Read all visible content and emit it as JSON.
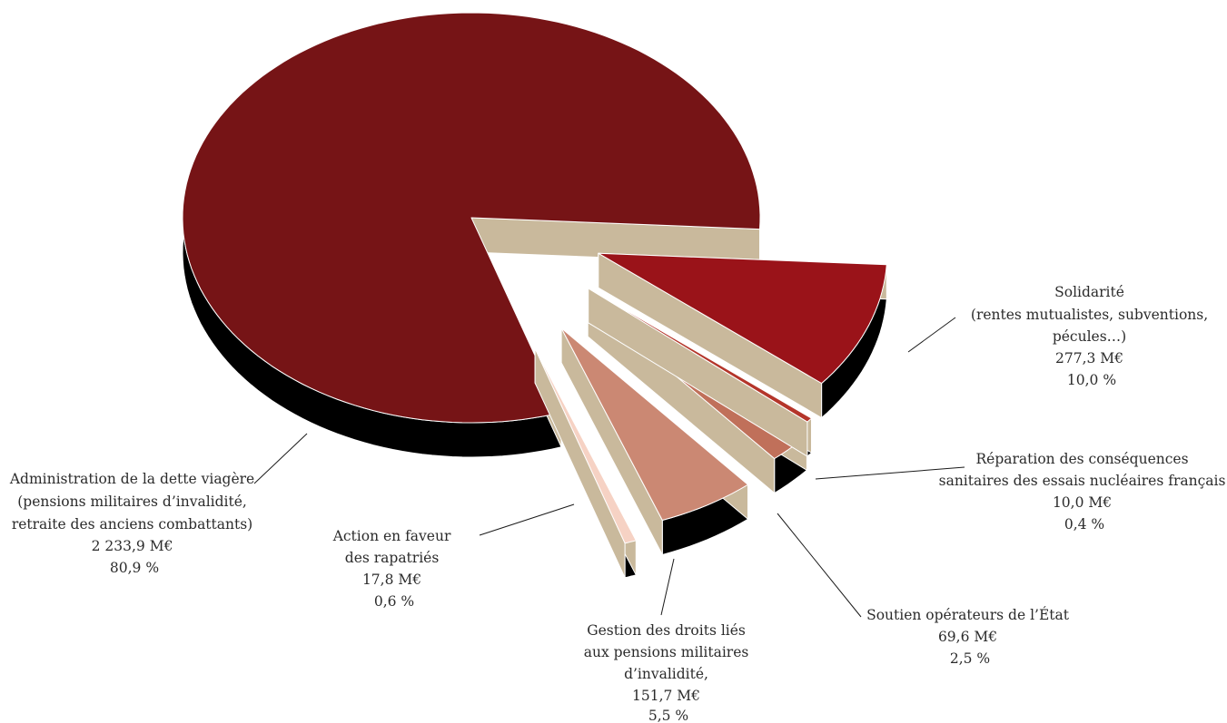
{
  "chart_data": {
    "type": "pie",
    "style": "3d-exploded",
    "title": "",
    "unit": "M€",
    "slices": [
      {
        "key": "admin",
        "name_lines": [
          "Administration de la dette viagère",
          "(pensions militaires d’invalidité,",
          "retraite des anciens combattants)"
        ],
        "value_text": "2 233,9 M€",
        "percent_text": "80,9 %",
        "value": 2233.9,
        "percent": 80.9,
        "color": "#761416"
      },
      {
        "key": "solidarite",
        "name_lines": [
          "Solidarité",
          "(rentes mutualistes, subventions,",
          "pécules…)"
        ],
        "value_text": "277,3 M€",
        "percent_text": "10,0 %",
        "value": 277.3,
        "percent": 10.0,
        "color": "#9a1319"
      },
      {
        "key": "reparation",
        "name_lines": [
          "Réparation des conséquences",
          "sanitaires des essais nucléaires français"
        ],
        "value_text": "10,0 M€",
        "percent_text": "0,4 %",
        "value": 10.0,
        "percent": 0.4,
        "color": "#b4352a"
      },
      {
        "key": "soutien",
        "name_lines": [
          "Soutien opérateurs de l’État"
        ],
        "value_text": "69,6 M€",
        "percent_text": "2,5 %",
        "value": 69.6,
        "percent": 2.5,
        "color": "#c0705a"
      },
      {
        "key": "gestion",
        "name_lines": [
          "Gestion des droits liés",
          "aux pensions militaires",
          "d’invalidité,"
        ],
        "value_text": "151,7 M€",
        "percent_text": "5,5 %",
        "value": 151.7,
        "percent": 5.5,
        "color": "#cb8873"
      },
      {
        "key": "rapatries",
        "name_lines": [
          "Action en faveur",
          "des rapatriés"
        ],
        "value_text": "17,8 M€",
        "percent_text": "0,6 %",
        "value": 17.8,
        "percent": 0.6,
        "color": "#f6d2c4"
      }
    ],
    "colors": {
      "depth": "#000000",
      "cut_face": "#c9b99c",
      "outline": "#ffffff"
    }
  }
}
